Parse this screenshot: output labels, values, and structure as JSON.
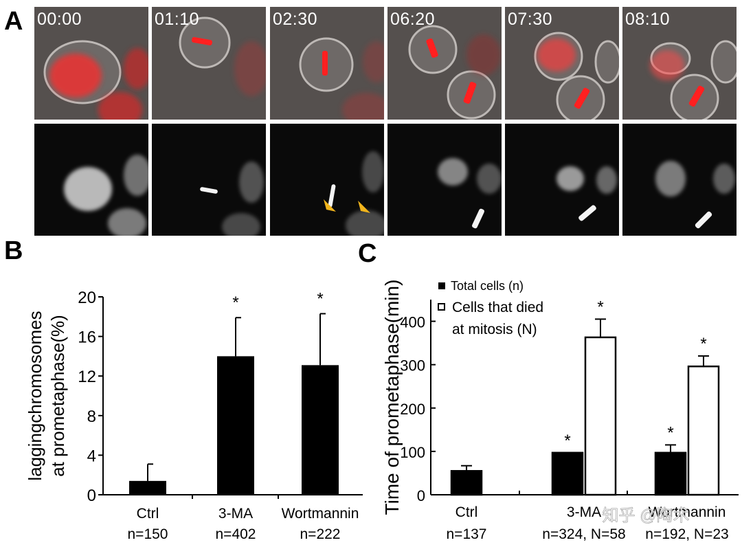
{
  "figure": {
    "panel_letters": {
      "a": "A",
      "b": "B",
      "c": "C"
    },
    "watermark": "知乎 @陶术",
    "panel_a": {
      "timestamps": [
        "00:00",
        "01:10",
        "02:30",
        "06:20",
        "07:30",
        "08:10"
      ]
    }
  },
  "chart_data": [
    {
      "id": "B",
      "type": "bar",
      "ylabel_lines": [
        "laggingchromosomes",
        "at prometaphase(%)"
      ],
      "categories": [
        "Ctrl",
        "3-MA",
        "Wortmannin"
      ],
      "category_sublabels": [
        "n=150",
        "n=402",
        "n=222"
      ],
      "values": [
        1.4,
        14.0,
        13.1
      ],
      "errors": [
        1.7,
        3.9,
        5.2
      ],
      "significance": [
        "",
        "*",
        "*"
      ],
      "ylim": [
        0,
        20
      ],
      "yticks": [
        0,
        4,
        8,
        12,
        16,
        20
      ],
      "bar_color": "#000000"
    },
    {
      "id": "C",
      "type": "bar",
      "ylabel": "Time of prometaphase(min)",
      "categories": [
        "Ctrl",
        "3-MA",
        "Wortmannin"
      ],
      "category_sublabels": [
        "n=137",
        "n=324, N=58",
        "n=192, N=23"
      ],
      "series": [
        {
          "name": "Total cells (n)",
          "values": [
            55,
            97,
            97
          ],
          "errors": [
            12,
            0,
            18
          ],
          "significance": [
            "",
            "*",
            "*"
          ],
          "color": "#000000"
        },
        {
          "name_lines": [
            "Cells that died",
            "at mitosis (N)"
          ],
          "values": [
            null,
            363,
            296
          ],
          "errors": [
            null,
            42,
            24
          ],
          "significance": [
            "",
            "*",
            "*"
          ],
          "color": "#ffffff"
        }
      ],
      "ylim": [
        0,
        450
      ],
      "yticks": [
        0,
        100,
        200,
        300,
        400
      ],
      "legend_position": "top-left"
    }
  ]
}
